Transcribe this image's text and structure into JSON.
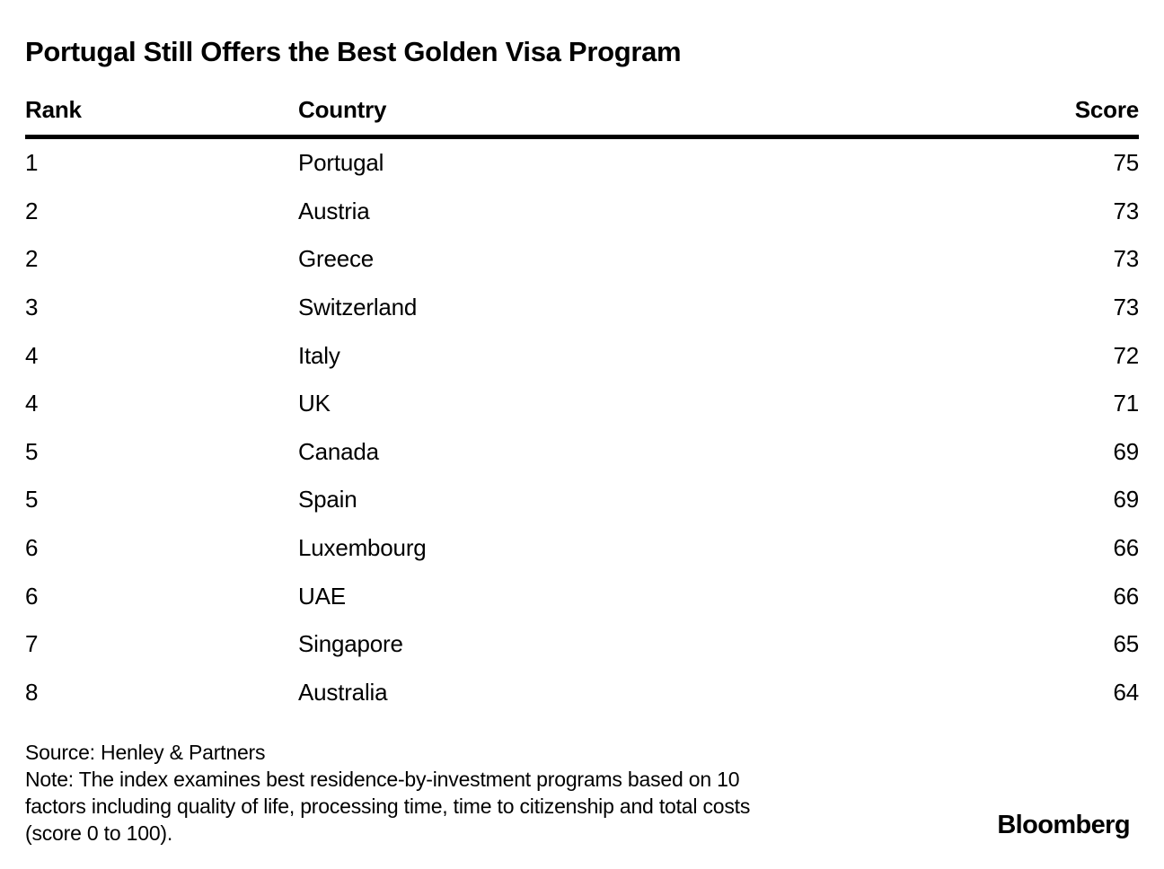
{
  "title": "Portugal Still Offers the Best Golden Visa Program",
  "table": {
    "columns": [
      "Rank",
      "Country",
      "Score"
    ],
    "rows": [
      {
        "rank": "1",
        "country": "Portugal",
        "score": "75"
      },
      {
        "rank": "2",
        "country": "Austria",
        "score": "73"
      },
      {
        "rank": "2",
        "country": "Greece",
        "score": "73"
      },
      {
        "rank": "3",
        "country": "Switzerland",
        "score": "73"
      },
      {
        "rank": "4",
        "country": "Italy",
        "score": "72"
      },
      {
        "rank": "4",
        "country": "UK",
        "score": "71"
      },
      {
        "rank": "5",
        "country": "Canada",
        "score": "69"
      },
      {
        "rank": "5",
        "country": "Spain",
        "score": "69"
      },
      {
        "rank": "6",
        "country": "Luxembourg",
        "score": "66"
      },
      {
        "rank": "6",
        "country": "UAE",
        "score": "66"
      },
      {
        "rank": "7",
        "country": "Singapore",
        "score": "65"
      },
      {
        "rank": "8",
        "country": "Australia",
        "score": "64"
      }
    ]
  },
  "footer": {
    "source": "Source: Henley & Partners",
    "note_lines": [
      "Note: The index examines best residence-by-investment programs based on 10",
      "factors including quality of life, processing time, time to citizenship and total costs",
      "(score 0 to 100)."
    ],
    "brand": "Bloomberg"
  },
  "colors": {
    "text": "#000000",
    "background": "#ffffff",
    "rule": "#000000"
  },
  "chart_data": {
    "type": "table",
    "title": "Portugal Still Offers the Best Golden Visa Program",
    "columns": [
      "Rank",
      "Country",
      "Score"
    ],
    "rows": [
      [
        1,
        "Portugal",
        75
      ],
      [
        2,
        "Austria",
        73
      ],
      [
        2,
        "Greece",
        73
      ],
      [
        3,
        "Switzerland",
        73
      ],
      [
        4,
        "Italy",
        72
      ],
      [
        4,
        "UK",
        71
      ],
      [
        5,
        "Canada",
        69
      ],
      [
        5,
        "Spain",
        69
      ],
      [
        6,
        "Luxembourg",
        66
      ],
      [
        6,
        "UAE",
        66
      ],
      [
        7,
        "Singapore",
        65
      ],
      [
        8,
        "Australia",
        64
      ]
    ],
    "score_range": [
      0,
      100
    ],
    "source": "Henley & Partners"
  }
}
